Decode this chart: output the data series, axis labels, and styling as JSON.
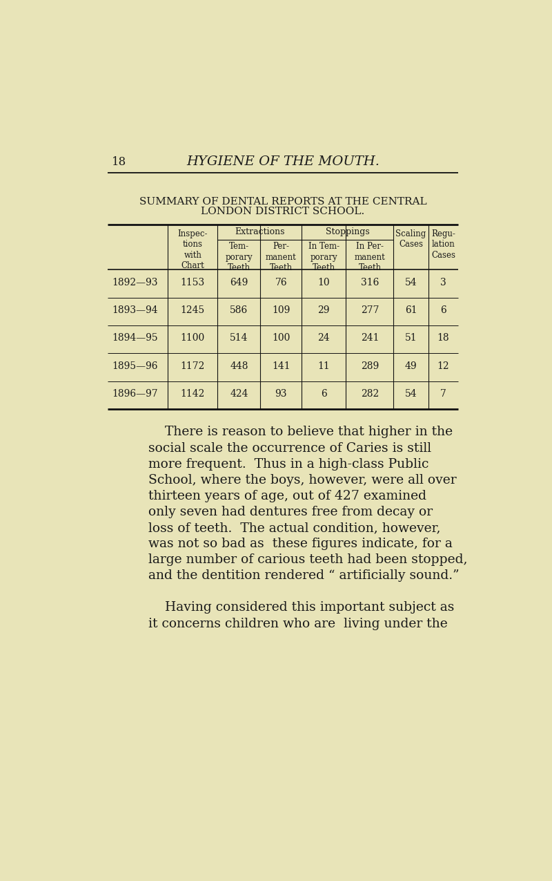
{
  "bg_color": "#e8e4b8",
  "text_color": "#1a1a1a",
  "page_number": "18",
  "page_header": "HYGIENE OF THE MOUTH.",
  "table_title_line1": "SUMMARY OF DENTAL REPORTS AT THE CENTRAL",
  "table_title_line2": "LONDON DISTRICT SCHOOL.",
  "extractions_header": "Extractions",
  "stoppings_header": "Stoppings",
  "rows": [
    {
      "year": "1892—93",
      "inspections": "1153",
      "temp_ext": "649",
      "perm_ext": "76",
      "temp_stop": "10",
      "perm_stop": "316",
      "scaling": "54",
      "regulation": "3"
    },
    {
      "year": "1893—94",
      "inspections": "1245",
      "temp_ext": "586",
      "perm_ext": "109",
      "temp_stop": "29",
      "perm_stop": "277",
      "scaling": "61",
      "regulation": "6"
    },
    {
      "year": "1894—95",
      "inspections": "1100",
      "temp_ext": "514",
      "perm_ext": "100",
      "temp_stop": "24",
      "perm_stop": "241",
      "scaling": "51",
      "regulation": "18"
    },
    {
      "year": "1895—96",
      "inspections": "1172",
      "temp_ext": "448",
      "perm_ext": "141",
      "temp_stop": "11",
      "perm_stop": "289",
      "scaling": "49",
      "regulation": "12"
    },
    {
      "year": "1896—97",
      "inspections": "1142",
      "temp_ext": "424",
      "perm_ext": "93",
      "temp_stop": "6",
      "perm_stop": "282",
      "scaling": "54",
      "regulation": "7"
    }
  ],
  "body_lines": [
    "    There is reason to believe that higher in the",
    "social scale the occurrence of Caries is still",
    "more frequent.  Thus in a high-class Public",
    "School, where the boys, however, were all over",
    "thirteen years of age, out of 427 examined",
    "only seven had dentures free from decay or",
    "loss of teeth.  The actual condition, however,",
    "was not so bad as  these figures indicate, for a",
    "large number of carious teeth had been stopped,",
    "and the dentition rendered “ artificially sound.”",
    "",
    "    Having considered this important subject as",
    "it concerns children who are  living under the"
  ]
}
